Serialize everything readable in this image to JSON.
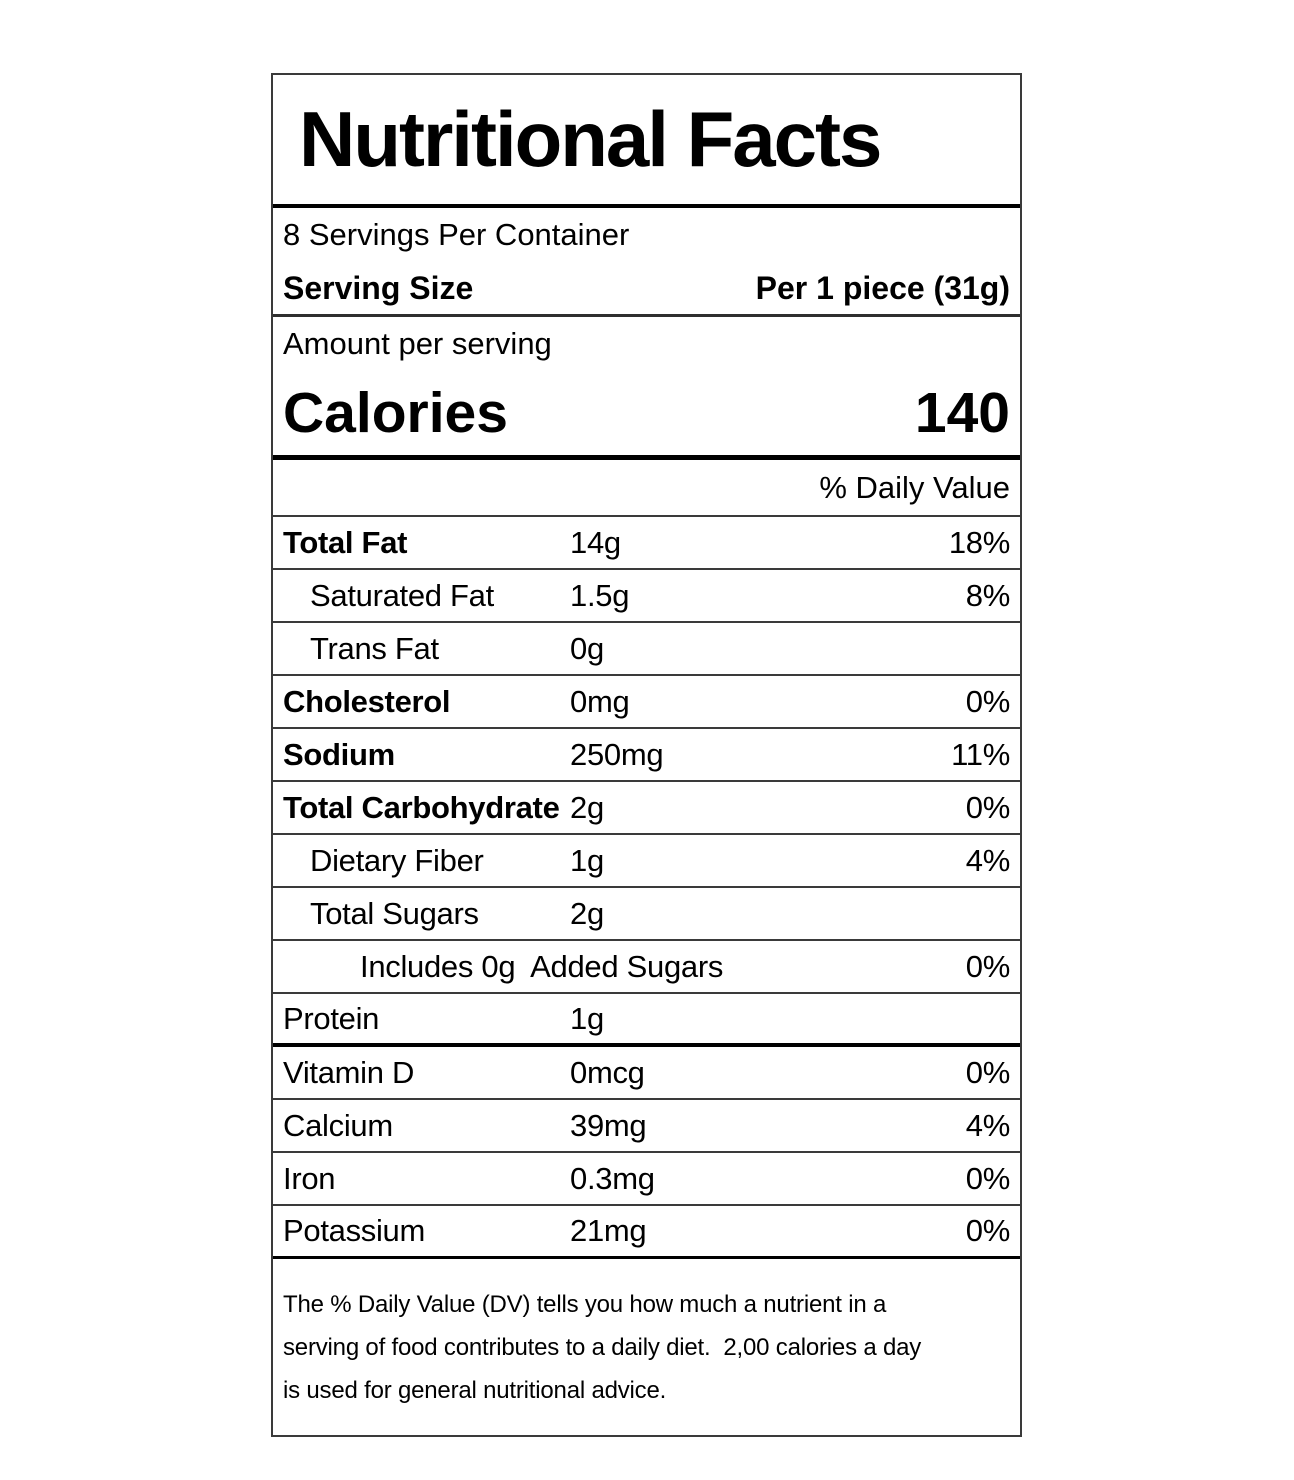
{
  "label": {
    "title": "Nutritional Facts",
    "servings_per_container": "8 Servings Per Container",
    "serving_size": {
      "label": "Serving Size",
      "value": "Per 1 piece (31g)"
    },
    "amount_per_serving": "Amount per serving",
    "calories": {
      "label": "Calories",
      "value": "140"
    },
    "daily_value_header": "% Daily Value",
    "nutrients": [
      {
        "name": "Total Fat",
        "amount": "14g",
        "dv": "18%",
        "bold": true,
        "indent": 0
      },
      {
        "name": "Saturated Fat",
        "amount": "1.5g",
        "dv": "8%",
        "bold": false,
        "indent": 1
      },
      {
        "name": "Trans Fat",
        "amount": "0g",
        "dv": "",
        "bold": false,
        "indent": 1
      },
      {
        "name": "Cholesterol",
        "amount": "0mg",
        "dv": "0%",
        "bold": true,
        "indent": 0
      },
      {
        "name": "Sodium",
        "amount": "250mg",
        "dv": "11%",
        "bold": true,
        "indent": 0
      },
      {
        "name": "Total Carbohydrate",
        "amount": "2g",
        "dv": "0%",
        "bold": true,
        "indent": 0
      },
      {
        "name": "Dietary Fiber",
        "amount": "1g",
        "dv": "4%",
        "bold": false,
        "indent": 1
      },
      {
        "name": "Total Sugars",
        "amount": "2g",
        "dv": "",
        "bold": false,
        "indent": 1
      },
      {
        "name": "Includes 0g  Added Sugars",
        "amount": "",
        "dv": "0%",
        "bold": false,
        "indent": 2
      },
      {
        "name": "Protein",
        "amount": "1g",
        "dv": "",
        "bold": false,
        "indent": 0,
        "rule": "thick"
      }
    ],
    "minerals": [
      {
        "name": "Vitamin D",
        "amount": "0mcg",
        "dv": "0%"
      },
      {
        "name": "Calcium",
        "amount": "39mg",
        "dv": "4%"
      },
      {
        "name": "Iron",
        "amount": "0.3mg",
        "dv": "0%"
      },
      {
        "name": "Potassium",
        "amount": "21mg",
        "dv": "0%",
        "rule": "medium"
      }
    ],
    "footnote_lines": [
      "The % Daily Value (DV) tells you how much a nutrient in a",
      "serving of food contributes to a daily diet.  2,00 calories a day",
      "is used for general nutritional advice."
    ]
  }
}
